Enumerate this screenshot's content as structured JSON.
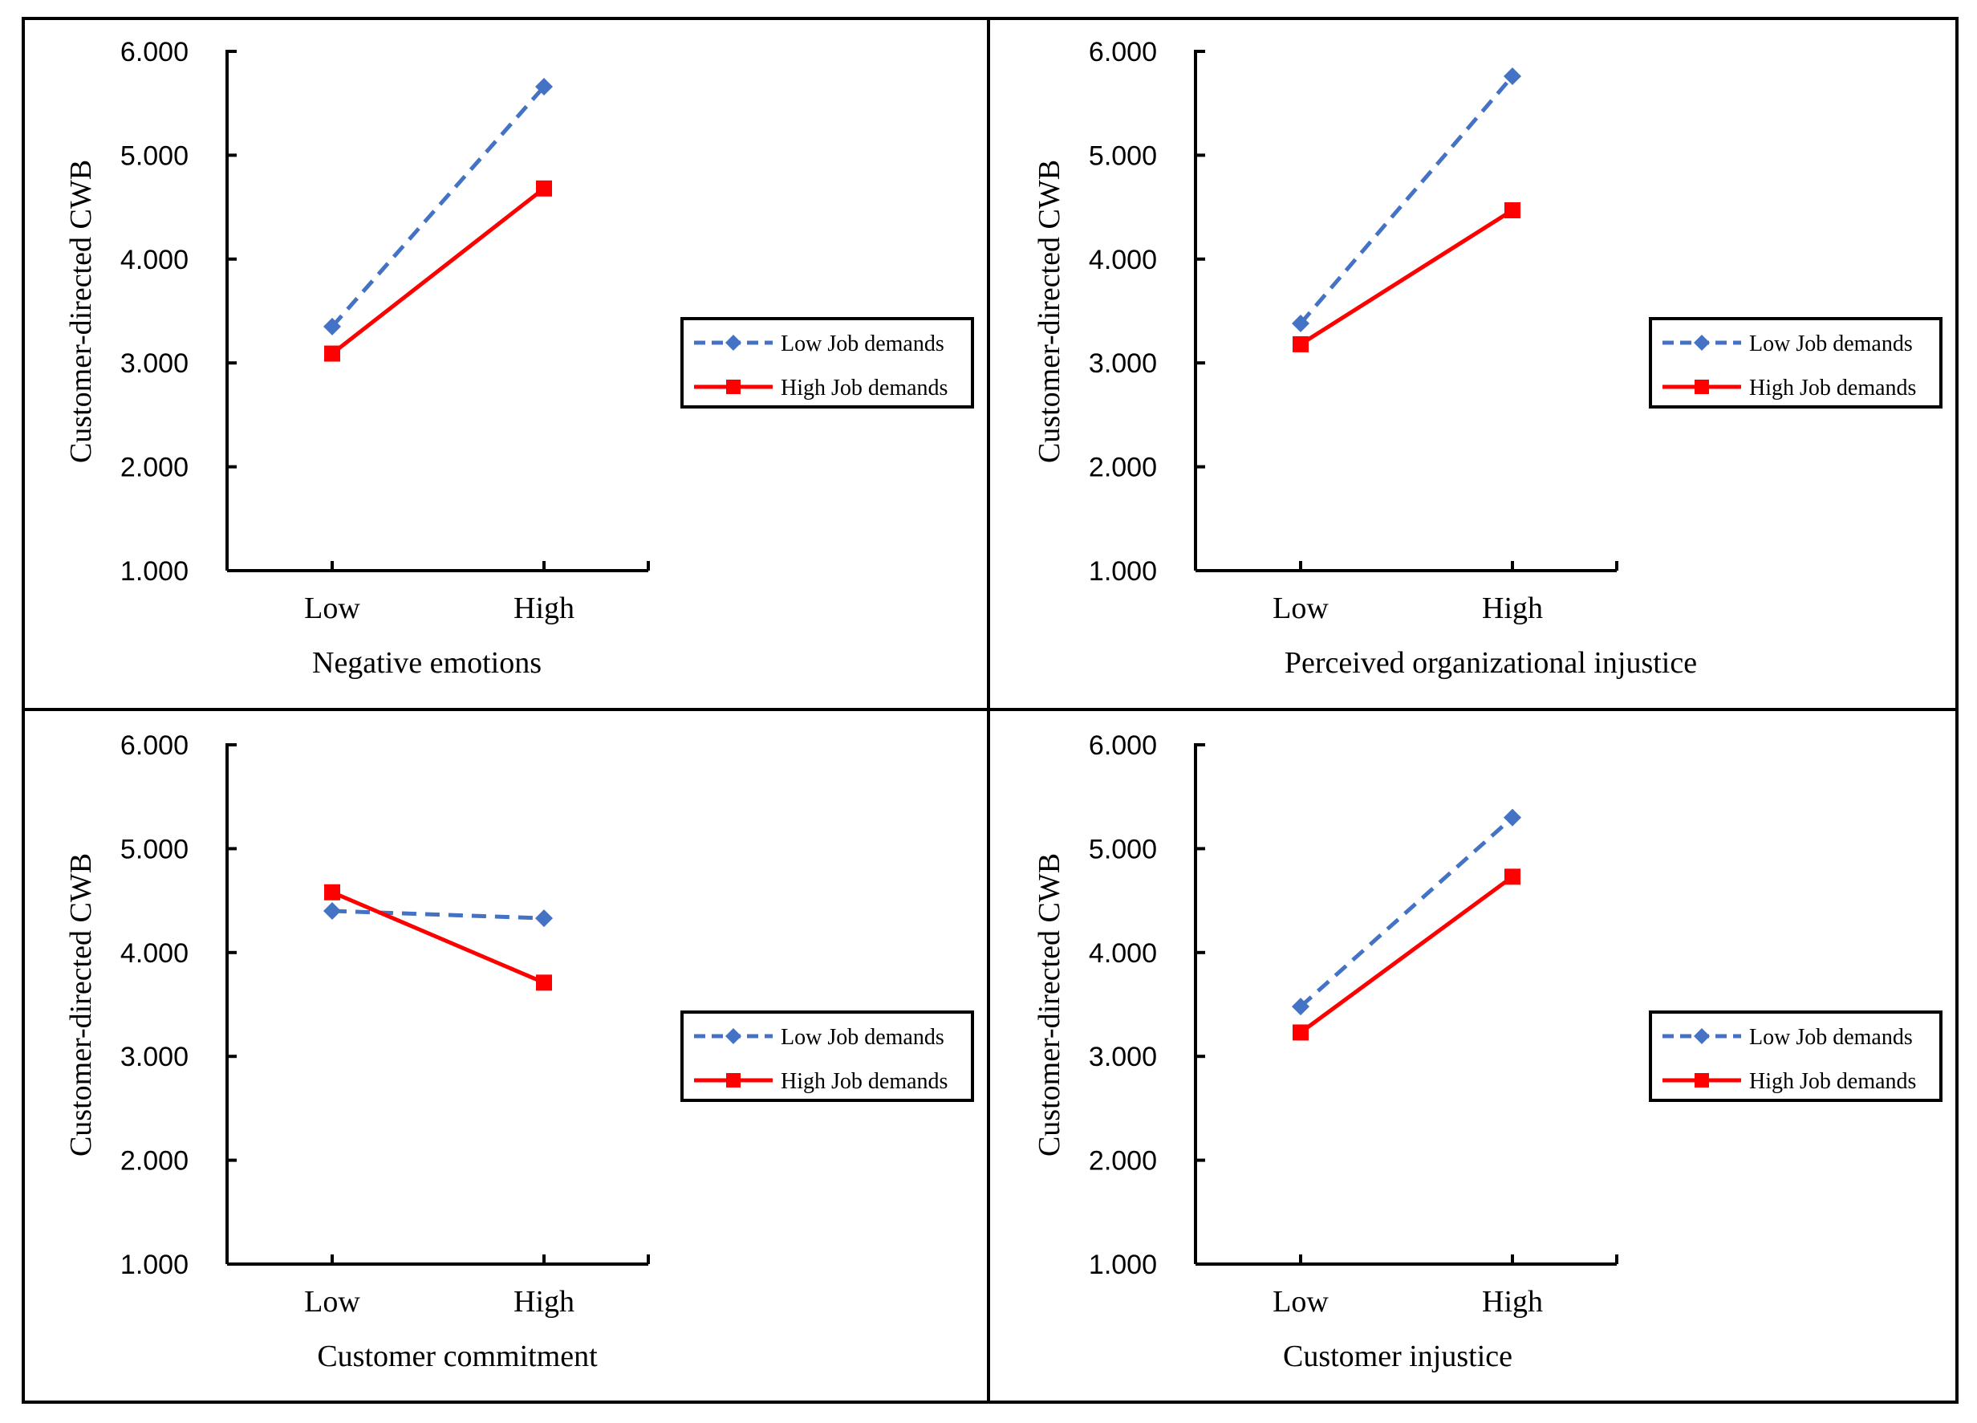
{
  "colors": {
    "low_series": "#4472C4",
    "high_series": "#FF0000",
    "axis": "#000000",
    "frame": "#000000"
  },
  "chart_data": [
    {
      "type": "line",
      "title": "",
      "xlabel": "Negative emotions",
      "ylabel": "Customer-directed CWB",
      "categories": [
        "Low",
        "High"
      ],
      "ylim": [
        1,
        6
      ],
      "yticks": [
        "1.000",
        "2.000",
        "3.000",
        "4.000",
        "5.000",
        "6.000"
      ],
      "series": [
        {
          "name": "Low Job demands",
          "values": [
            3.35,
            5.66
          ],
          "style": "dashed",
          "marker": "diamond"
        },
        {
          "name": "High Job demands",
          "values": [
            3.09,
            4.68
          ],
          "style": "solid",
          "marker": "square"
        }
      ]
    },
    {
      "type": "line",
      "title": "",
      "xlabel": "Perceived organizational injustice",
      "ylabel": "Customer-directed CWB",
      "categories": [
        "Low",
        "High"
      ],
      "ylim": [
        1,
        6
      ],
      "yticks": [
        "1.000",
        "2.000",
        "3.000",
        "4.000",
        "5.000",
        "6.000"
      ],
      "series": [
        {
          "name": "Low Job demands",
          "values": [
            3.38,
            5.76
          ],
          "style": "dashed",
          "marker": "diamond"
        },
        {
          "name": "High Job demands",
          "values": [
            3.18,
            4.47
          ],
          "style": "solid",
          "marker": "square"
        }
      ]
    },
    {
      "type": "line",
      "title": "",
      "xlabel": "Customer commitment",
      "ylabel": "Customer-directed CWB",
      "categories": [
        "Low",
        "High"
      ],
      "ylim": [
        1,
        6
      ],
      "yticks": [
        "1.000",
        "2.000",
        "3.000",
        "4.000",
        "5.000",
        "6.000"
      ],
      "series": [
        {
          "name": "Low Job demands",
          "values": [
            4.4,
            4.33
          ],
          "style": "dashed",
          "marker": "diamond"
        },
        {
          "name": "High Job demands",
          "values": [
            4.58,
            3.71
          ],
          "style": "solid",
          "marker": "square"
        }
      ]
    },
    {
      "type": "line",
      "title": "",
      "xlabel": "Customer injustice",
      "ylabel": "Customer-directed CWB",
      "categories": [
        "Low",
        "High"
      ],
      "ylim": [
        1,
        6
      ],
      "yticks": [
        "1.000",
        "2.000",
        "3.000",
        "4.000",
        "5.000",
        "6.000"
      ],
      "series": [
        {
          "name": "Low Job demands",
          "values": [
            3.48,
            5.3
          ],
          "style": "dashed",
          "marker": "diamond"
        },
        {
          "name": "High Job demands",
          "values": [
            3.23,
            4.73
          ],
          "style": "solid",
          "marker": "square"
        }
      ]
    }
  ]
}
